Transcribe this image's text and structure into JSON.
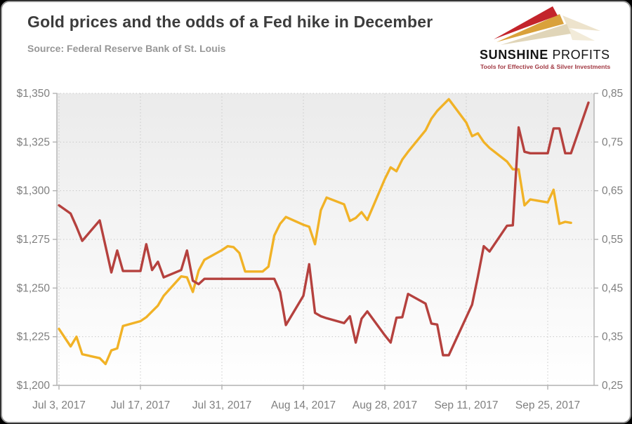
{
  "page": {
    "background_color": "#000000",
    "card_color": "#ffffff"
  },
  "header": {
    "title": "Gold prices and the odds of a Fed hike in December",
    "source": "Source: Federal Reserve Bank of St. Louis",
    "logo": {
      "name_bold": "SUNSHINE",
      "name_light": "PROFITS",
      "tagline": "Tools for Effective Gold & Silver Investments",
      "arrow_red": "#C3242B",
      "arrow_gold": "#D9A13B",
      "arrow_beige": "#E0D5B8",
      "tagline_color": "#A23A44"
    }
  },
  "chart_data": {
    "type": "line",
    "title": "Gold prices and the odds of a Fed hike in December",
    "legend": "none",
    "grid": {
      "horizontal": true,
      "vertical": true,
      "style": "dotted"
    },
    "grid_color": "#c9c9c9",
    "axis_color": "#b2b2b2",
    "label_color": "#7f7f7f",
    "plot_bg_top": "#ebebeb",
    "plot_bg_bottom": "#ffffff",
    "x_axis": {
      "tick_labels": [
        "Jul 3, 2017",
        "Jul 17, 2017",
        "Jul 31, 2017",
        "Aug 14, 2017",
        "Aug 28, 2017",
        "Sep 11, 2017",
        "Sep 25, 2017"
      ],
      "tick_days": [
        0,
        14,
        28,
        42,
        56,
        70,
        84
      ],
      "day_zero_is": "Jul 3, 2017",
      "day_span": [
        0,
        91
      ]
    },
    "left_axis": {
      "labels": [
        "$1,350",
        "$1,325",
        "$1,300",
        "$1,275",
        "$1,250",
        "$1,225",
        "$1,200"
      ],
      "values": [
        1350,
        1325,
        1300,
        1275,
        1250,
        1225,
        1200
      ],
      "range": [
        1200,
        1350
      ]
    },
    "right_axis": {
      "labels": [
        "0,85",
        "0,75",
        "0,65",
        "0,55",
        "0,45",
        "0,35",
        "0,25"
      ],
      "values": [
        0.85,
        0.75,
        0.65,
        0.55,
        0.45,
        0.35,
        0.25
      ],
      "range": [
        0.25,
        0.85
      ]
    },
    "series": [
      {
        "name": "Gold price",
        "axis": "left",
        "color": "#F1B226",
        "points_day_value": [
          [
            0,
            1229
          ],
          [
            2,
            1220
          ],
          [
            3,
            1225
          ],
          [
            4,
            1216
          ],
          [
            7,
            1214
          ],
          [
            8,
            1211
          ],
          [
            9,
            1218
          ],
          [
            10,
            1219
          ],
          [
            11,
            1230.5
          ],
          [
            14,
            1233
          ],
          [
            15,
            1235
          ],
          [
            16,
            1238
          ],
          [
            17,
            1241
          ],
          [
            18,
            1246
          ],
          [
            21,
            1256
          ],
          [
            22,
            1255.5
          ],
          [
            23,
            1248
          ],
          [
            24,
            1259
          ],
          [
            25,
            1264.5
          ],
          [
            28,
            1269.5
          ],
          [
            29,
            1271.5
          ],
          [
            30,
            1271
          ],
          [
            31,
            1268
          ],
          [
            32,
            1258.5
          ],
          [
            35,
            1258.5
          ],
          [
            36,
            1261
          ],
          [
            37,
            1277
          ],
          [
            38,
            1283
          ],
          [
            39,
            1286.5
          ],
          [
            42,
            1282.5
          ],
          [
            43,
            1281.5
          ],
          [
            44,
            1272.5
          ],
          [
            45,
            1290
          ],
          [
            46,
            1296.5
          ],
          [
            49,
            1293
          ],
          [
            50,
            1284.5
          ],
          [
            51,
            1286
          ],
          [
            52,
            1289
          ],
          [
            53,
            1285
          ],
          [
            56,
            1306
          ],
          [
            57,
            1312
          ],
          [
            58,
            1310
          ],
          [
            59,
            1316
          ],
          [
            60,
            1320
          ],
          [
            63,
            1331
          ],
          [
            64,
            1337
          ],
          [
            65,
            1341
          ],
          [
            66,
            1344
          ],
          [
            67,
            1347
          ],
          [
            70,
            1335
          ],
          [
            71,
            1328
          ],
          [
            72,
            1329.5
          ],
          [
            73,
            1325
          ],
          [
            74,
            1322
          ],
          [
            77,
            1315
          ],
          [
            78,
            1311
          ],
          [
            79,
            1311
          ],
          [
            80,
            1292.5
          ],
          [
            81,
            1295.5
          ],
          [
            84,
            1294
          ],
          [
            85,
            1300.5
          ],
          [
            86,
            1283
          ],
          [
            87,
            1284
          ],
          [
            88,
            1283.5
          ]
        ]
      },
      {
        "name": "Odds of a Fed hike in December",
        "axis": "right",
        "color": "#B5413E",
        "points_day_value": [
          [
            0,
            0.62
          ],
          [
            2,
            0.603
          ],
          [
            3,
            0.576
          ],
          [
            4,
            0.547
          ],
          [
            7,
            0.589
          ],
          [
            8,
            0.536
          ],
          [
            9,
            0.482
          ],
          [
            10,
            0.527
          ],
          [
            11,
            0.485
          ],
          [
            14,
            0.485
          ],
          [
            15,
            0.54
          ],
          [
            16,
            0.487
          ],
          [
            17,
            0.504
          ],
          [
            18,
            0.472
          ],
          [
            21,
            0.487
          ],
          [
            22,
            0.527
          ],
          [
            23,
            0.465
          ],
          [
            24,
            0.458
          ],
          [
            25,
            0.469
          ],
          [
            28,
            0.469
          ],
          [
            29,
            0.469
          ],
          [
            30,
            0.469
          ],
          [
            31,
            0.469
          ],
          [
            32,
            0.469
          ],
          [
            35,
            0.469
          ],
          [
            36,
            0.469
          ],
          [
            37,
            0.469
          ],
          [
            38,
            0.442
          ],
          [
            39,
            0.374
          ],
          [
            42,
            0.434
          ],
          [
            43,
            0.499
          ],
          [
            44,
            0.399
          ],
          [
            45,
            0.392
          ],
          [
            46,
            0.388
          ],
          [
            49,
            0.378
          ],
          [
            50,
            0.392
          ],
          [
            51,
            0.338
          ],
          [
            52,
            0.387
          ],
          [
            53,
            0.402
          ],
          [
            56,
            0.353
          ],
          [
            57,
            0.338
          ],
          [
            58,
            0.389
          ],
          [
            59,
            0.39
          ],
          [
            60,
            0.438
          ],
          [
            63,
            0.418
          ],
          [
            64,
            0.377
          ],
          [
            65,
            0.375
          ],
          [
            66,
            0.312
          ],
          [
            67,
            0.312
          ],
          [
            70,
            0.39
          ],
          [
            71,
            0.416
          ],
          [
            72,
            0.474
          ],
          [
            73,
            0.536
          ],
          [
            74,
            0.525
          ],
          [
            77,
            0.578
          ],
          [
            78,
            0.579
          ],
          [
            79,
            0.78
          ],
          [
            80,
            0.73
          ],
          [
            81,
            0.727
          ],
          [
            84,
            0.727
          ],
          [
            85,
            0.778
          ],
          [
            86,
            0.778
          ],
          [
            87,
            0.727
          ],
          [
            88,
            0.727
          ],
          [
            91,
            0.831
          ]
        ]
      }
    ]
  }
}
